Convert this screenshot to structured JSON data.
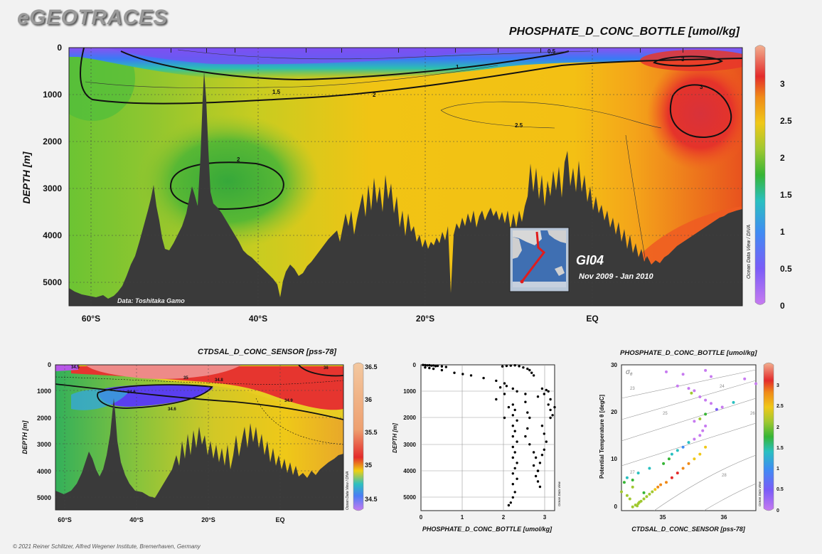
{
  "app": {
    "logo": "eGEOTRACES",
    "credit": "© 2021 Reiner Schlitzer, Alfred Wegener Institute, Bremerhaven, Germany",
    "odv_label": "Ocean Data View / DIVA",
    "odv_label_short": "Ocean Data View"
  },
  "colors": {
    "background": "#f2f2f2",
    "seafloor": "#3a3a3a",
    "cruise_track": "#e01c1c"
  },
  "main_section": {
    "title": "PHOSPHATE_D_CONC_BOTTLE [umol/kg]",
    "cruise": "GI04",
    "period": "Nov 2009 - Jan 2010",
    "data_credit": "Data: Toshitaka Gamo",
    "ylabel": "DEPTH [m]",
    "y_ticks": [
      "0",
      "1000",
      "2000",
      "3000",
      "4000",
      "5000"
    ],
    "x_ticks": [
      "60°S",
      "40°S",
      "20°S",
      "EQ"
    ],
    "contour_labels": [
      "0.5",
      "1",
      "1.5",
      "2",
      "2",
      "2.5",
      "3",
      "3"
    ],
    "colorbar_ticks": [
      "0",
      "0.5",
      "1",
      "1.5",
      "2",
      "2.5",
      "3"
    ]
  },
  "salinity_section": {
    "title": "CTDSAL_D_CONC_SENSOR [pss-78]",
    "ylabel": "DEPTH [m]",
    "y_ticks": [
      "0",
      "1000",
      "2000",
      "3000",
      "4000",
      "5000"
    ],
    "x_ticks": [
      "60°S",
      "40°S",
      "20°S",
      "EQ"
    ],
    "contour_labels": [
      "34.5",
      "34.6",
      "35",
      "34.8",
      "36",
      "34.9",
      "34.6"
    ],
    "colorbar_ticks": [
      "34.5",
      "35",
      "35.5",
      "36",
      "36.5"
    ]
  },
  "chart_data": [
    {
      "type": "heatmap",
      "title": "PHOSPHATE_D_CONC_BOTTLE [umol/kg]",
      "xlabel": "",
      "ylabel": "DEPTH [m]",
      "x_range": [
        "65°S",
        "12°N"
      ],
      "ylim": [
        5500,
        0
      ],
      "colorbar_range": [
        0,
        3.5
      ],
      "description_points": [
        {
          "lat": -60,
          "depth": 50,
          "value": 1.8
        },
        {
          "lat": -45,
          "depth": 100,
          "value": 0.5
        },
        {
          "lat": -40,
          "depth": 3000,
          "value": 1.9
        },
        {
          "lat": -20,
          "depth": 2000,
          "value": 2.3
        },
        {
          "lat": 0,
          "depth": 1500,
          "value": 2.5
        },
        {
          "lat": 8,
          "depth": 1500,
          "value": 3.1
        }
      ]
    },
    {
      "type": "heatmap",
      "title": "CTDSAL_D_CONC_SENSOR [pss-78]",
      "xlabel": "",
      "ylabel": "DEPTH [m]",
      "ylim": [
        5500,
        0
      ],
      "colorbar_range": [
        34.4,
        36.6
      ]
    },
    {
      "type": "scatter",
      "title": "",
      "xlabel": "PHOSPHATE_D_CONC_BOTTLE [umol/kg]",
      "ylabel": "DEPTH [m]",
      "xlim": [
        0,
        3.2
      ],
      "ylim": [
        5500,
        0
      ],
      "x_ticks": [
        "0",
        "1",
        "2",
        "3"
      ],
      "y_ticks": [
        "0",
        "1000",
        "2000",
        "3000",
        "4000",
        "5000"
      ],
      "points": [
        [
          0.05,
          5
        ],
        [
          0.1,
          10
        ],
        [
          0.15,
          20
        ],
        [
          0.2,
          15
        ],
        [
          0.25,
          30
        ],
        [
          0.3,
          25
        ],
        [
          0.35,
          50
        ],
        [
          0.4,
          40
        ],
        [
          0.5,
          60
        ],
        [
          0.6,
          80
        ],
        [
          0.1,
          100
        ],
        [
          0.2,
          120
        ],
        [
          0.3,
          150
        ],
        [
          0.5,
          200
        ],
        [
          0.8,
          300
        ],
        [
          1.0,
          350
        ],
        [
          1.2,
          400
        ],
        [
          1.5,
          500
        ],
        [
          1.8,
          600
        ],
        [
          2.0,
          700
        ],
        [
          1.95,
          60
        ],
        [
          2.05,
          40
        ],
        [
          2.15,
          30
        ],
        [
          2.25,
          20
        ],
        [
          2.35,
          50
        ],
        [
          2.45,
          100
        ],
        [
          2.55,
          150
        ],
        [
          2.6,
          200
        ],
        [
          2.65,
          300
        ],
        [
          2.7,
          400
        ],
        [
          2.9,
          900
        ],
        [
          3.0,
          950
        ],
        [
          3.05,
          1000
        ],
        [
          2.95,
          1100
        ],
        [
          3.1,
          1300
        ],
        [
          3.05,
          1500
        ],
        [
          2.8,
          1200
        ],
        [
          2.5,
          1100
        ],
        [
          2.3,
          1000
        ],
        [
          2.2,
          900
        ],
        [
          2.2,
          1500
        ],
        [
          2.25,
          1700
        ],
        [
          2.2,
          1900
        ],
        [
          2.3,
          2100
        ],
        [
          2.2,
          2300
        ],
        [
          2.25,
          2500
        ],
        [
          2.2,
          2700
        ],
        [
          2.3,
          2900
        ],
        [
          2.2,
          3100
        ],
        [
          2.25,
          3300
        ],
        [
          2.2,
          3500
        ],
        [
          2.3,
          3700
        ],
        [
          2.25,
          3900
        ],
        [
          2.2,
          4100
        ],
        [
          2.3,
          4300
        ],
        [
          2.2,
          4500
        ],
        [
          2.25,
          4800
        ],
        [
          2.2,
          5000
        ],
        [
          2.15,
          5200
        ],
        [
          2.1,
          5300
        ],
        [
          2.5,
          1400
        ],
        [
          2.55,
          1800
        ],
        [
          2.6,
          2000
        ],
        [
          2.55,
          2400
        ],
        [
          2.5,
          2700
        ],
        [
          2.6,
          3000
        ],
        [
          2.7,
          3300
        ],
        [
          2.75,
          3500
        ],
        [
          2.7,
          3800
        ],
        [
          2.8,
          4000
        ],
        [
          2.75,
          4200
        ],
        [
          2.8,
          4400
        ],
        [
          2.85,
          4600
        ],
        [
          2.8,
          4000
        ],
        [
          2.85,
          3700
        ],
        [
          2.9,
          3400
        ],
        [
          2.95,
          3200
        ],
        [
          3.0,
          2900
        ],
        [
          2.95,
          2600
        ],
        [
          2.9,
          2300
        ],
        [
          3.1,
          1700
        ],
        [
          3.15,
          1900
        ],
        [
          3.2,
          1600
        ],
        [
          3.1,
          2000
        ],
        [
          2.05,
          800
        ],
        [
          1.9,
          850
        ],
        [
          2.0,
          1100
        ],
        [
          1.8,
          1300
        ],
        [
          2.1,
          1600
        ],
        [
          2.0,
          2000
        ]
      ]
    },
    {
      "type": "scatter",
      "title": "PHOSPHATE_D_CONC_BOTTLE [umol/kg]",
      "xlabel": "CTDSAL_D_CONC_SENSOR [pss-78]",
      "ylabel": "Potential Temperature θ [degC]",
      "xlim": [
        34.1,
        36.5
      ],
      "ylim": [
        -1,
        30
      ],
      "x_ticks": [
        "35",
        "36"
      ],
      "y_ticks": [
        "0",
        "10",
        "20",
        "30"
      ],
      "sigma_labels": [
        "23",
        "24",
        "25",
        "26",
        "27",
        "28"
      ],
      "colorbar_range": [
        0,
        3.5
      ],
      "colorbar_ticks": [
        "0",
        "0.5",
        "1",
        "1.5",
        "2",
        "2.5",
        "3"
      ],
      "points": [
        {
          "s": 34.9,
          "t": 28.5,
          "p": 0.1
        },
        {
          "s": 35.2,
          "t": 28.0,
          "p": 0.1
        },
        {
          "s": 35.6,
          "t": 28.8,
          "p": 0.1
        },
        {
          "s": 35.7,
          "t": 27.5,
          "p": 0.15
        },
        {
          "s": 36.3,
          "t": 27.0,
          "p": 0.1
        },
        {
          "s": 36.5,
          "t": 26.0,
          "p": 0.1
        },
        {
          "s": 35.1,
          "t": 25.5,
          "p": 0.1
        },
        {
          "s": 35.3,
          "t": 25.0,
          "p": 0.2
        },
        {
          "s": 35.4,
          "t": 24.5,
          "p": 0.15
        },
        {
          "s": 35.5,
          "t": 23.2,
          "p": 0.2
        },
        {
          "s": 35.6,
          "t": 22.5,
          "p": 0.3
        },
        {
          "s": 35.7,
          "t": 21.8,
          "p": 0.4
        },
        {
          "s": 35.8,
          "t": 20.5,
          "p": 0.5
        },
        {
          "s": 36.1,
          "t": 22.0,
          "p": 1.6
        },
        {
          "s": 35.9,
          "t": 21.0,
          "p": 0.3
        },
        {
          "s": 35.6,
          "t": 19.5,
          "p": 1.8
        },
        {
          "s": 35.5,
          "t": 18.5,
          "p": 2.2
        },
        {
          "s": 35.4,
          "t": 18.0,
          "p": 0.3
        },
        {
          "s": 35.6,
          "t": 17.0,
          "p": 0.3
        },
        {
          "s": 35.55,
          "t": 16.0,
          "p": 0.3
        },
        {
          "s": 35.5,
          "t": 15.0,
          "p": 0.3
        },
        {
          "s": 35.4,
          "t": 14.2,
          "p": 0.3
        },
        {
          "s": 35.3,
          "t": 13.5,
          "p": 1.4
        },
        {
          "s": 35.2,
          "t": 12.5,
          "p": 1.2
        },
        {
          "s": 35.1,
          "t": 11.8,
          "p": 1.6
        },
        {
          "s": 35.0,
          "t": 11.0,
          "p": 1.6
        },
        {
          "s": 34.95,
          "t": 10.0,
          "p": 1.9
        },
        {
          "s": 34.85,
          "t": 9.0,
          "p": 1.8
        },
        {
          "s": 34.6,
          "t": 8.0,
          "p": 1.6
        },
        {
          "s": 34.4,
          "t": 7.0,
          "p": 1.5
        },
        {
          "s": 34.2,
          "t": 6.0,
          "p": 1.5
        },
        {
          "s": 34.15,
          "t": 5.0,
          "p": 1.8
        },
        {
          "s": 34.3,
          "t": 5.5,
          "p": 1.8
        },
        {
          "s": 35.6,
          "t": 12.5,
          "p": 2.5
        },
        {
          "s": 35.5,
          "t": 11.0,
          "p": 2.6
        },
        {
          "s": 35.4,
          "t": 10.0,
          "p": 2.5
        },
        {
          "s": 35.3,
          "t": 9.0,
          "p": 2.8
        },
        {
          "s": 35.2,
          "t": 8.0,
          "p": 3.0
        },
        {
          "s": 35.1,
          "t": 7.0,
          "p": 3.1
        },
        {
          "s": 35.0,
          "t": 6.0,
          "p": 3.1
        },
        {
          "s": 34.9,
          "t": 5.0,
          "p": 3.0
        },
        {
          "s": 34.8,
          "t": 4.5,
          "p": 3.0
        },
        {
          "s": 34.75,
          "t": 4.0,
          "p": 2.9
        },
        {
          "s": 34.7,
          "t": 3.5,
          "p": 2.6
        },
        {
          "s": 34.65,
          "t": 3.0,
          "p": 2.4
        },
        {
          "s": 34.6,
          "t": 2.5,
          "p": 2.3
        },
        {
          "s": 34.55,
          "t": 2.0,
          "p": 2.3
        },
        {
          "s": 34.5,
          "t": 1.5,
          "p": 2.2
        },
        {
          "s": 34.45,
          "t": 1.0,
          "p": 2.2
        },
        {
          "s": 34.4,
          "t": 0.5,
          "p": 2.2
        },
        {
          "s": 34.35,
          "t": 0.2,
          "p": 2.25
        },
        {
          "s": 34.3,
          "t": -0.2,
          "p": 2.2
        },
        {
          "s": 34.38,
          "t": 0.0,
          "p": 2.3
        },
        {
          "s": 34.42,
          "t": 0.8,
          "p": 2.4
        },
        {
          "s": 34.5,
          "t": 2.8,
          "p": 2.0
        },
        {
          "s": 34.3,
          "t": 4.0,
          "p": 2.1
        },
        {
          "s": 34.2,
          "t": 2.2,
          "p": 2.4
        },
        {
          "s": 34.25,
          "t": 1.5,
          "p": 2.4
        },
        {
          "s": 34.1,
          "t": 3.0,
          "p": 2.3
        },
        {
          "s": 35.35,
          "t": 24.0,
          "p": 2.2
        }
      ]
    }
  ]
}
